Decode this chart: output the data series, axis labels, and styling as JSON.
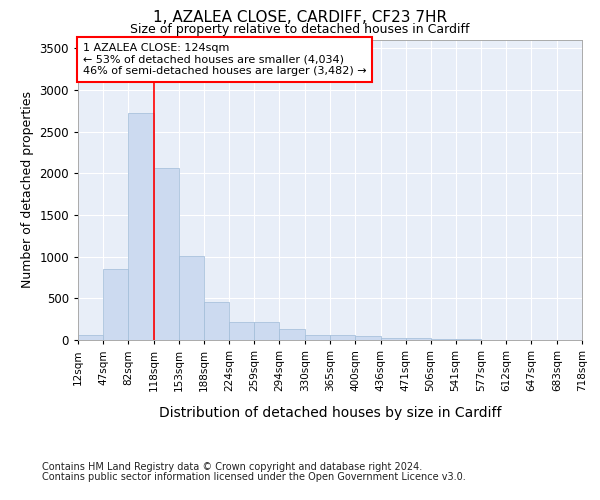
{
  "title_line1": "1, AZALEA CLOSE, CARDIFF, CF23 7HR",
  "title_line2": "Size of property relative to detached houses in Cardiff",
  "xlabel": "Distribution of detached houses by size in Cardiff",
  "ylabel": "Number of detached properties",
  "footnote1": "Contains HM Land Registry data © Crown copyright and database right 2024.",
  "footnote2": "Contains public sector information licensed under the Open Government Licence v3.0.",
  "annotation_line1": "1 AZALEA CLOSE: 124sqm",
  "annotation_line2": "← 53% of detached houses are smaller (4,034)",
  "annotation_line3": "46% of semi-detached houses are larger (3,482) →",
  "bar_color": "#ccdaf0",
  "bar_edge_color": "#a0bcd8",
  "bar_left_edges": [
    12,
    47,
    82,
    118,
    153,
    188,
    224,
    259,
    294,
    330,
    365,
    400,
    436,
    471,
    506,
    541,
    577,
    612,
    647,
    683
  ],
  "bar_widths": [
    35,
    35,
    36,
    35,
    35,
    36,
    35,
    35,
    36,
    35,
    35,
    36,
    35,
    35,
    35,
    36,
    35,
    35,
    36,
    35
  ],
  "bar_heights": [
    60,
    850,
    2720,
    2060,
    1005,
    455,
    220,
    220,
    130,
    65,
    55,
    45,
    30,
    20,
    10,
    10,
    5,
    5,
    2,
    2
  ],
  "ylim": [
    0,
    3600
  ],
  "xlim": [
    12,
    718
  ],
  "ytick_interval": 500,
  "red_line_x": 118,
  "bg_color": "#e8eef8",
  "grid_color": "#ffffff",
  "tick_labels": [
    "12sqm",
    "47sqm",
    "82sqm",
    "118sqm",
    "153sqm",
    "188sqm",
    "224sqm",
    "259sqm",
    "294sqm",
    "330sqm",
    "365sqm",
    "400sqm",
    "436sqm",
    "471sqm",
    "506sqm",
    "541sqm",
    "577sqm",
    "612sqm",
    "647sqm",
    "683sqm",
    "718sqm"
  ],
  "title_fontsize": 11,
  "subtitle_fontsize": 9,
  "ylabel_fontsize": 9,
  "xlabel_fontsize": 10,
  "footnote_fontsize": 7,
  "tick_fontsize": 7.5,
  "ytick_fontsize": 8.5,
  "ann_fontsize": 8
}
